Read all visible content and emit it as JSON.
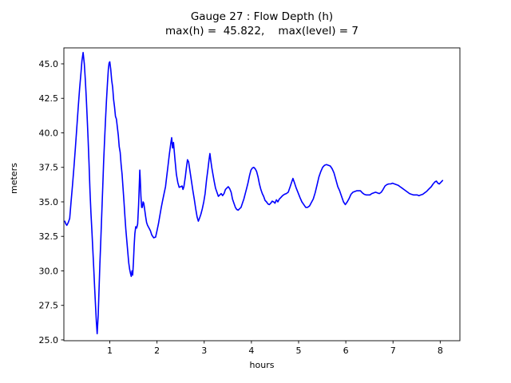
{
  "chart_data": {
    "type": "line",
    "title": "Gauge 27 : Flow Depth (h)",
    "subtitle": "max(h) =  45.822,    max(level) = 7",
    "xlabel": "hours",
    "ylabel": "meters",
    "xlim": [
      0.027,
      8.417
    ],
    "ylim": [
      24.94,
      46.156
    ],
    "xticks": [
      1,
      2,
      3,
      4,
      5,
      6,
      7,
      8
    ],
    "yticks": [
      25.0,
      27.5,
      30.0,
      32.5,
      35.0,
      37.5,
      40.0,
      42.5,
      45.0
    ],
    "grid": false,
    "legend": "none",
    "line_color": "#0000ff",
    "axis_color": "#000000",
    "max_h": 45.822,
    "max_level": 7,
    "series": [
      {
        "name": "flow-depth-h",
        "points": [
          [
            0.045,
            33.6
          ],
          [
            0.07,
            33.4
          ],
          [
            0.09,
            33.3
          ],
          [
            0.12,
            33.5
          ],
          [
            0.15,
            33.8
          ],
          [
            0.18,
            35.0
          ],
          [
            0.21,
            36.2
          ],
          [
            0.24,
            37.5
          ],
          [
            0.27,
            38.9
          ],
          [
            0.3,
            40.3
          ],
          [
            0.33,
            41.8
          ],
          [
            0.36,
            43.2
          ],
          [
            0.39,
            44.4
          ],
          [
            0.41,
            45.2
          ],
          [
            0.435,
            45.82
          ],
          [
            0.46,
            45.0
          ],
          [
            0.48,
            43.9
          ],
          [
            0.5,
            42.6
          ],
          [
            0.52,
            41.2
          ],
          [
            0.54,
            39.6
          ],
          [
            0.56,
            37.8
          ],
          [
            0.58,
            35.8
          ],
          [
            0.6,
            34.2
          ],
          [
            0.62,
            32.9
          ],
          [
            0.64,
            31.6
          ],
          [
            0.66,
            30.2
          ],
          [
            0.68,
            28.7
          ],
          [
            0.7,
            27.3
          ],
          [
            0.715,
            26.3
          ],
          [
            0.733,
            25.45
          ],
          [
            0.755,
            26.8
          ],
          [
            0.77,
            28.4
          ],
          [
            0.79,
            30.5
          ],
          [
            0.81,
            32.3
          ],
          [
            0.83,
            34.2
          ],
          [
            0.85,
            36.1
          ],
          [
            0.87,
            37.9
          ],
          [
            0.89,
            39.5
          ],
          [
            0.91,
            41.0
          ],
          [
            0.93,
            42.4
          ],
          [
            0.95,
            43.6
          ],
          [
            0.97,
            44.6
          ],
          [
            0.985,
            45.05
          ],
          [
            1.0,
            45.15
          ],
          [
            1.02,
            44.6
          ],
          [
            1.04,
            43.8
          ],
          [
            1.06,
            43.3
          ],
          [
            1.08,
            42.4
          ],
          [
            1.1,
            41.9
          ],
          [
            1.12,
            41.2
          ],
          [
            1.14,
            41.0
          ],
          [
            1.16,
            40.4
          ],
          [
            1.18,
            39.8
          ],
          [
            1.2,
            39.0
          ],
          [
            1.22,
            38.6
          ],
          [
            1.24,
            37.7
          ],
          [
            1.26,
            37.0
          ],
          [
            1.28,
            36.0
          ],
          [
            1.3,
            35.0
          ],
          [
            1.32,
            34.0
          ],
          [
            1.34,
            33.0
          ],
          [
            1.36,
            32.2
          ],
          [
            1.38,
            31.4
          ],
          [
            1.4,
            30.6
          ],
          [
            1.42,
            30.1
          ],
          [
            1.44,
            29.8
          ],
          [
            1.455,
            29.6
          ],
          [
            1.47,
            30.0
          ],
          [
            1.485,
            29.7
          ],
          [
            1.5,
            30.6
          ],
          [
            1.515,
            31.8
          ],
          [
            1.53,
            32.7
          ],
          [
            1.55,
            33.2
          ],
          [
            1.57,
            33.1
          ],
          [
            1.59,
            33.4
          ],
          [
            1.61,
            34.8
          ],
          [
            1.625,
            36.3
          ],
          [
            1.635,
            37.3
          ],
          [
            1.645,
            36.6
          ],
          [
            1.66,
            35.4
          ],
          [
            1.675,
            34.6
          ],
          [
            1.69,
            34.6
          ],
          [
            1.705,
            35.0
          ],
          [
            1.72,
            34.9
          ],
          [
            1.74,
            34.4
          ],
          [
            1.76,
            33.9
          ],
          [
            1.78,
            33.5
          ],
          [
            1.8,
            33.3
          ],
          [
            1.83,
            33.1
          ],
          [
            1.86,
            32.9
          ],
          [
            1.89,
            32.6
          ],
          [
            1.93,
            32.4
          ],
          [
            1.97,
            32.45
          ],
          [
            2.0,
            32.9
          ],
          [
            2.03,
            33.4
          ],
          [
            2.06,
            34.0
          ],
          [
            2.09,
            34.6
          ],
          [
            2.12,
            35.1
          ],
          [
            2.15,
            35.6
          ],
          [
            2.18,
            36.1
          ],
          [
            2.2,
            36.7
          ],
          [
            2.23,
            37.5
          ],
          [
            2.26,
            38.4
          ],
          [
            2.29,
            39.2
          ],
          [
            2.31,
            39.65
          ],
          [
            2.33,
            38.9
          ],
          [
            2.35,
            39.3
          ],
          [
            2.38,
            38.1
          ],
          [
            2.41,
            37.0
          ],
          [
            2.44,
            36.4
          ],
          [
            2.47,
            36.05
          ],
          [
            2.5,
            36.1
          ],
          [
            2.53,
            36.15
          ],
          [
            2.55,
            35.9
          ],
          [
            2.57,
            36.1
          ],
          [
            2.6,
            36.8
          ],
          [
            2.62,
            37.4
          ],
          [
            2.645,
            38.05
          ],
          [
            2.67,
            37.9
          ],
          [
            2.7,
            37.2
          ],
          [
            2.73,
            36.5
          ],
          [
            2.76,
            35.8
          ],
          [
            2.79,
            35.2
          ],
          [
            2.82,
            34.5
          ],
          [
            2.85,
            33.9
          ],
          [
            2.875,
            33.6
          ],
          [
            2.9,
            33.8
          ],
          [
            2.93,
            34.1
          ],
          [
            2.96,
            34.5
          ],
          [
            2.99,
            35.0
          ],
          [
            3.02,
            35.6
          ],
          [
            3.05,
            36.6
          ],
          [
            3.08,
            37.4
          ],
          [
            3.1,
            38.0
          ],
          [
            3.12,
            38.5
          ],
          [
            3.14,
            38.0
          ],
          [
            3.16,
            37.5
          ],
          [
            3.18,
            37.1
          ],
          [
            3.21,
            36.5
          ],
          [
            3.24,
            36.0
          ],
          [
            3.27,
            35.7
          ],
          [
            3.3,
            35.4
          ],
          [
            3.33,
            35.5
          ],
          [
            3.36,
            35.6
          ],
          [
            3.39,
            35.45
          ],
          [
            3.42,
            35.6
          ],
          [
            3.45,
            35.9
          ],
          [
            3.48,
            36.0
          ],
          [
            3.51,
            36.1
          ],
          [
            3.54,
            35.95
          ],
          [
            3.57,
            35.7
          ],
          [
            3.6,
            35.2
          ],
          [
            3.63,
            34.9
          ],
          [
            3.66,
            34.6
          ],
          [
            3.69,
            34.45
          ],
          [
            3.72,
            34.4
          ],
          [
            3.75,
            34.5
          ],
          [
            3.78,
            34.6
          ],
          [
            3.81,
            34.9
          ],
          [
            3.84,
            35.2
          ],
          [
            3.87,
            35.6
          ],
          [
            3.9,
            36.0
          ],
          [
            3.93,
            36.4
          ],
          [
            3.96,
            36.9
          ],
          [
            3.99,
            37.3
          ],
          [
            4.02,
            37.45
          ],
          [
            4.05,
            37.5
          ],
          [
            4.08,
            37.4
          ],
          [
            4.11,
            37.2
          ],
          [
            4.14,
            36.8
          ],
          [
            4.17,
            36.3
          ],
          [
            4.2,
            35.9
          ],
          [
            4.23,
            35.6
          ],
          [
            4.26,
            35.4
          ],
          [
            4.29,
            35.1
          ],
          [
            4.32,
            35.0
          ],
          [
            4.35,
            34.85
          ],
          [
            4.38,
            34.8
          ],
          [
            4.41,
            34.9
          ],
          [
            4.44,
            35.05
          ],
          [
            4.47,
            35.0
          ],
          [
            4.5,
            34.9
          ],
          [
            4.53,
            35.15
          ],
          [
            4.56,
            35.0
          ],
          [
            4.59,
            35.2
          ],
          [
            4.62,
            35.3
          ],
          [
            4.66,
            35.45
          ],
          [
            4.7,
            35.55
          ],
          [
            4.74,
            35.6
          ],
          [
            4.78,
            35.7
          ],
          [
            4.82,
            36.1
          ],
          [
            4.86,
            36.5
          ],
          [
            4.88,
            36.7
          ],
          [
            4.91,
            36.4
          ],
          [
            4.95,
            36.0
          ],
          [
            4.99,
            35.65
          ],
          [
            5.03,
            35.3
          ],
          [
            5.07,
            35.0
          ],
          [
            5.11,
            34.8
          ],
          [
            5.15,
            34.6
          ],
          [
            5.19,
            34.6
          ],
          [
            5.23,
            34.7
          ],
          [
            5.27,
            34.95
          ],
          [
            5.31,
            35.2
          ],
          [
            5.35,
            35.65
          ],
          [
            5.39,
            36.2
          ],
          [
            5.43,
            36.8
          ],
          [
            5.47,
            37.2
          ],
          [
            5.51,
            37.5
          ],
          [
            5.55,
            37.65
          ],
          [
            5.59,
            37.7
          ],
          [
            5.63,
            37.65
          ],
          [
            5.67,
            37.6
          ],
          [
            5.71,
            37.4
          ],
          [
            5.75,
            37.1
          ],
          [
            5.79,
            36.6
          ],
          [
            5.83,
            36.1
          ],
          [
            5.87,
            35.8
          ],
          [
            5.91,
            35.4
          ],
          [
            5.95,
            35.0
          ],
          [
            5.99,
            34.8
          ],
          [
            6.03,
            35.0
          ],
          [
            6.07,
            35.25
          ],
          [
            6.11,
            35.55
          ],
          [
            6.15,
            35.7
          ],
          [
            6.19,
            35.75
          ],
          [
            6.23,
            35.8
          ],
          [
            6.27,
            35.8
          ],
          [
            6.31,
            35.8
          ],
          [
            6.35,
            35.65
          ],
          [
            6.39,
            35.55
          ],
          [
            6.43,
            35.5
          ],
          [
            6.47,
            35.5
          ],
          [
            6.51,
            35.5
          ],
          [
            6.55,
            35.6
          ],
          [
            6.59,
            35.65
          ],
          [
            6.63,
            35.7
          ],
          [
            6.67,
            35.65
          ],
          [
            6.71,
            35.6
          ],
          [
            6.75,
            35.7
          ],
          [
            6.79,
            35.9
          ],
          [
            6.83,
            36.15
          ],
          [
            6.87,
            36.25
          ],
          [
            6.91,
            36.3
          ],
          [
            6.95,
            36.3
          ],
          [
            6.99,
            36.35
          ],
          [
            7.03,
            36.3
          ],
          [
            7.07,
            36.25
          ],
          [
            7.11,
            36.2
          ],
          [
            7.15,
            36.1
          ],
          [
            7.19,
            36.0
          ],
          [
            7.23,
            35.9
          ],
          [
            7.27,
            35.8
          ],
          [
            7.31,
            35.7
          ],
          [
            7.35,
            35.6
          ],
          [
            7.39,
            35.55
          ],
          [
            7.43,
            35.5
          ],
          [
            7.47,
            35.5
          ],
          [
            7.51,
            35.5
          ],
          [
            7.55,
            35.45
          ],
          [
            7.59,
            35.5
          ],
          [
            7.63,
            35.55
          ],
          [
            7.67,
            35.65
          ],
          [
            7.71,
            35.75
          ],
          [
            7.75,
            35.9
          ],
          [
            7.81,
            36.1
          ],
          [
            7.85,
            36.3
          ],
          [
            7.89,
            36.45
          ],
          [
            7.92,
            36.5
          ],
          [
            7.95,
            36.35
          ],
          [
            7.98,
            36.3
          ],
          [
            8.01,
            36.4
          ],
          [
            8.05,
            36.55
          ]
        ]
      }
    ]
  }
}
